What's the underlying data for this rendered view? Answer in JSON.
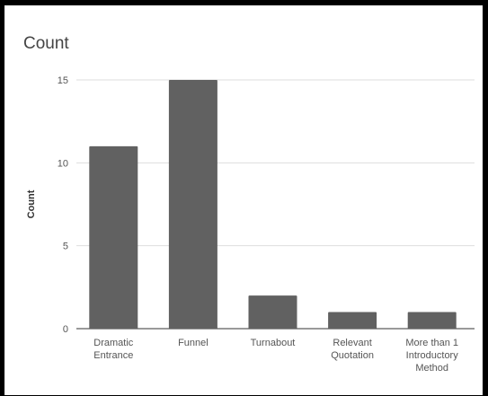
{
  "chart_data": {
    "type": "bar",
    "title": "Count",
    "xlabel": "",
    "ylabel": "Count",
    "categories": [
      [
        "Dramatic",
        "Entrance"
      ],
      [
        "Funnel"
      ],
      [
        "Turnabout"
      ],
      [
        "Relevant",
        "Quotation"
      ],
      [
        "More than 1",
        "Introductory",
        "Method"
      ]
    ],
    "values": [
      11,
      15,
      2,
      1,
      1
    ],
    "yticks": [
      0,
      5,
      10,
      15
    ],
    "ylim": [
      0,
      15
    ],
    "grid": true,
    "colors": {
      "bar": "#616161",
      "grid": "#dddddd",
      "axis": "#333333"
    }
  }
}
